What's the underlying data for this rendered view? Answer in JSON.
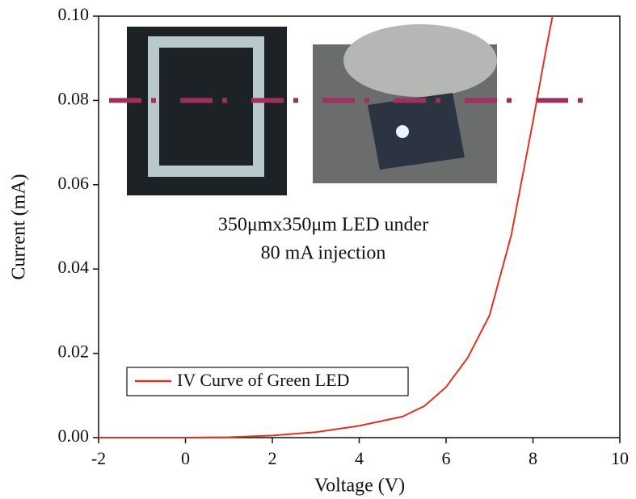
{
  "chart_data": {
    "type": "line",
    "xlabel": "Voltage (V)",
    "ylabel": "Current (mA)",
    "x": [
      -2,
      -1,
      0,
      1,
      2,
      3,
      4,
      5,
      5.5,
      6,
      6.5,
      7,
      7.5,
      8,
      8.3,
      8.45
    ],
    "series": [
      {
        "name": "IV Curve of Green LED",
        "color": "#e0321e",
        "values": [
          0,
          0,
          0,
          0.0001,
          0.0005,
          0.0013,
          0.0028,
          0.005,
          0.0075,
          0.012,
          0.019,
          0.029,
          0.048,
          0.075,
          0.092,
          0.1
        ]
      }
    ],
    "xlim": [
      -2,
      10
    ],
    "xticks": [
      -2,
      0,
      2,
      4,
      6,
      8,
      10
    ],
    "ylim": [
      0,
      0.1
    ],
    "yticks": [
      {
        "value": 0,
        "label": "0.00"
      },
      {
        "value": 0.02,
        "label": "0.02"
      },
      {
        "value": 0.04,
        "label": "0.04"
      },
      {
        "value": 0.06,
        "label": "0.06"
      },
      {
        "value": 0.08,
        "label": "0.08"
      },
      {
        "value": 0.1,
        "label": "0.10"
      }
    ],
    "hline": {
      "value": 0.08,
      "color": "#a0305e"
    },
    "annotation": [
      "350μmx350μm LED under",
      "80 mA injection"
    ],
    "legend": "lower left"
  }
}
